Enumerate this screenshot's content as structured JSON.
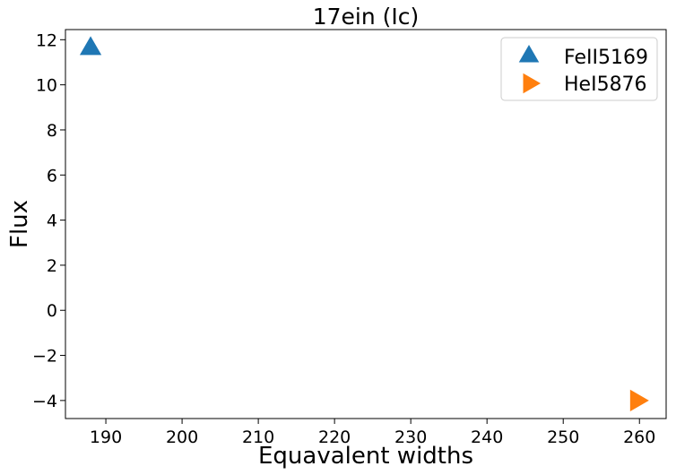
{
  "chart_data": {
    "type": "scatter",
    "title": "17ein (Ic)",
    "xlabel": "Equavalent widths",
    "ylabel": "Flux",
    "xlim": [
      184.7,
      263.5
    ],
    "ylim": [
      -4.8,
      12.45
    ],
    "xticks": [
      190,
      200,
      210,
      220,
      230,
      240,
      250,
      260
    ],
    "yticks": [
      -4,
      -2,
      0,
      2,
      4,
      6,
      8,
      10,
      12
    ],
    "grid": false,
    "legend_position": "top-right",
    "series": [
      {
        "name": "FeII5169",
        "marker": "triangle-up",
        "color": "#1f77b4",
        "points": [
          {
            "x": 188,
            "y": 11.6
          }
        ]
      },
      {
        "name": "HeI5876",
        "marker": "triangle-right",
        "color": "#ff7f0e",
        "points": [
          {
            "x": 259.6,
            "y": -4.0
          }
        ]
      }
    ]
  }
}
